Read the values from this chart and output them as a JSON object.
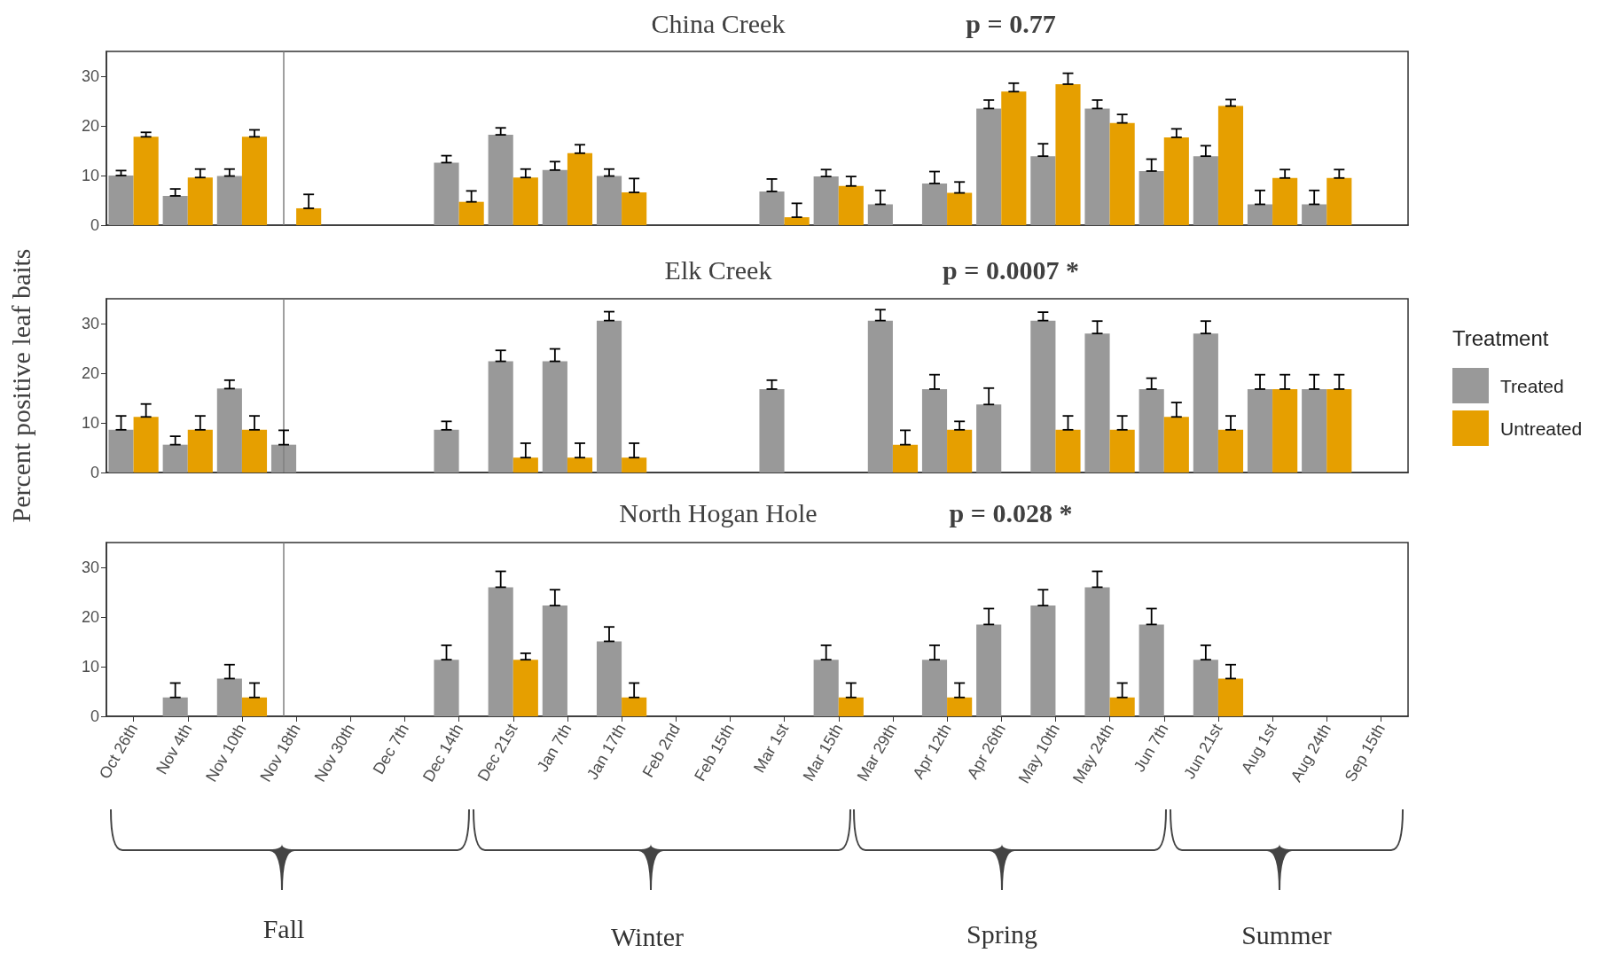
{
  "chart_data": [
    {
      "type": "bar",
      "title": "China Creek",
      "subtitle": "p = 0.77",
      "categories": [
        "Oct 26th",
        "Nov 4th",
        "Nov 10th",
        "Nov 18th",
        "Nov 30th",
        "Dec 7th",
        "Dec 14th",
        "Dec 21st",
        "Jan 7th",
        "Jan 17th",
        "Feb 2nd",
        "Feb 15th",
        "Mar 1st",
        "Mar 15th",
        "Mar 29th",
        "Apr 12th",
        "Apr 26th",
        "May 10th",
        "May 24th",
        "Jun 7th",
        "Jun 21st",
        "Aug 1st",
        "Aug 24th",
        "Sep 15th"
      ],
      "series": [
        {
          "color": "#999999",
          "values": [
            10.0,
            5.9,
            9.9,
            null,
            null,
            null,
            12.6,
            18.2,
            11.1,
            9.9,
            null,
            null,
            6.8,
            9.8,
            4.2,
            8.4,
            23.5,
            13.9,
            23.5,
            10.9,
            13.9,
            4.2,
            4.2,
            null
          ],
          "errors": [
            [
              10.0,
              11.0
            ],
            [
              5.9,
              7.3
            ],
            [
              9.9,
              11.3
            ],
            null,
            null,
            null,
            [
              12.6,
              14.0
            ],
            [
              18.2,
              19.6
            ],
            [
              11.1,
              12.8
            ],
            [
              9.9,
              11.3
            ],
            null,
            null,
            [
              6.8,
              9.3
            ],
            [
              9.8,
              11.2
            ],
            [
              4.2,
              7.0
            ],
            [
              8.4,
              10.8
            ],
            [
              23.5,
              25.2
            ],
            [
              13.9,
              16.4
            ],
            [
              23.5,
              25.2
            ],
            [
              10.9,
              13.3
            ],
            [
              13.9,
              16.0
            ],
            [
              4.2,
              7.0
            ],
            [
              4.2,
              7.0
            ],
            null
          ]
        },
        {
          "color": "#e69f00",
          "values": [
            17.8,
            9.6,
            17.8,
            3.4,
            null,
            null,
            4.7,
            9.6,
            14.5,
            6.6,
            null,
            null,
            1.6,
            7.9,
            null,
            6.5,
            26.9,
            28.4,
            20.6,
            17.7,
            24.0,
            9.5,
            9.5,
            null
          ],
          "errors": [
            [
              17.8,
              18.7
            ],
            [
              9.6,
              11.3
            ],
            [
              17.8,
              19.2
            ],
            [
              3.4,
              6.2
            ],
            null,
            null,
            [
              4.7,
              6.9
            ],
            [
              9.6,
              11.3
            ],
            [
              14.5,
              16.2
            ],
            [
              6.6,
              9.4
            ],
            null,
            null,
            [
              1.6,
              4.4
            ],
            [
              7.9,
              9.8
            ],
            null,
            [
              6.5,
              8.7
            ],
            [
              26.9,
              28.6
            ],
            [
              28.4,
              30.6
            ],
            [
              20.6,
              22.3
            ],
            [
              17.7,
              19.4
            ],
            [
              24.0,
              25.3
            ],
            [
              9.5,
              11.2
            ],
            [
              9.5,
              11.2
            ],
            null
          ]
        }
      ],
      "ylim": [
        0,
        35
      ],
      "yticks": [
        0,
        10,
        20,
        30
      ],
      "tick_labels": "y",
      "ref_lines": [
        {
          "axis": "x",
          "value": "Nov 18th",
          "color": "#808080"
        }
      ]
    },
    {
      "type": "bar",
      "title": "Elk Creek",
      "subtitle": "p = 0.0007 *",
      "ylabel": "Percent positive leaf baits",
      "legend_title": "Treatment",
      "categories": [
        "Oct 26th",
        "Nov 4th",
        "Nov 10th",
        "Nov 18th",
        "Nov 30th",
        "Dec 7th",
        "Dec 14th",
        "Dec 21st",
        "Jan 7th",
        "Jan 17th",
        "Feb 2nd",
        "Feb 15th",
        "Mar 1st",
        "Mar 15th",
        "Mar 29th",
        "Apr 12th",
        "Apr 26th",
        "May 10th",
        "May 24th",
        "Jun 7th",
        "Jun 21st",
        "Aug 1st",
        "Aug 24th",
        "Sep 15th"
      ],
      "series": [
        {
          "name": "Treated",
          "color": "#999999",
          "values": [
            8.6,
            5.6,
            16.9,
            5.6,
            null,
            null,
            8.6,
            22.4,
            22.4,
            30.6,
            null,
            null,
            16.8,
            null,
            30.6,
            16.8,
            13.7,
            30.6,
            28.0,
            16.8,
            28.0,
            16.8,
            16.8,
            null
          ],
          "errors": [
            [
              8.6,
              11.4
            ],
            [
              5.6,
              7.3
            ],
            [
              16.9,
              18.6
            ],
            [
              5.6,
              8.5
            ],
            null,
            null,
            [
              8.6,
              10.3
            ],
            [
              22.4,
              24.6
            ],
            [
              22.4,
              24.9
            ],
            [
              30.6,
              32.4
            ],
            null,
            null,
            [
              16.8,
              18.6
            ],
            null,
            [
              30.6,
              32.8
            ],
            [
              16.8,
              19.7
            ],
            [
              13.7,
              17.0
            ],
            [
              30.6,
              32.3
            ],
            [
              28.0,
              30.5
            ],
            [
              16.8,
              19.0
            ],
            [
              28.0,
              30.5
            ],
            [
              16.8,
              19.7
            ],
            [
              16.8,
              19.7
            ],
            null
          ]
        },
        {
          "name": "Untreated",
          "color": "#e69f00",
          "values": [
            11.2,
            8.6,
            8.6,
            null,
            null,
            null,
            null,
            3.0,
            3.0,
            3.0,
            null,
            null,
            null,
            null,
            5.6,
            8.6,
            null,
            8.6,
            8.6,
            11.2,
            8.6,
            16.8,
            16.8,
            null
          ],
          "errors": [
            [
              11.2,
              13.8
            ],
            [
              8.6,
              11.4
            ],
            [
              8.6,
              11.4
            ],
            null,
            null,
            null,
            null,
            [
              3.0,
              5.9
            ],
            [
              3.0,
              5.9
            ],
            [
              3.0,
              5.9
            ],
            null,
            null,
            null,
            null,
            [
              5.6,
              8.5
            ],
            [
              8.6,
              10.3
            ],
            null,
            [
              8.6,
              11.4
            ],
            [
              8.6,
              11.4
            ],
            [
              11.2,
              14.1
            ],
            [
              8.6,
              11.4
            ],
            [
              16.8,
              19.7
            ],
            [
              16.8,
              19.7
            ],
            null
          ]
        }
      ],
      "ylim": [
        0,
        35
      ],
      "yticks": [
        0,
        10,
        20,
        30
      ],
      "tick_labels": "y",
      "legend": "right",
      "ref_lines": [
        {
          "axis": "x",
          "value": "Nov 18th",
          "color": "#808080"
        }
      ]
    },
    {
      "type": "bar",
      "title": "North Hogan Hole",
      "subtitle": "p = 0.028 *",
      "categories": [
        "Oct 26th",
        "Nov 4th",
        "Nov 10th",
        "Nov 18th",
        "Nov 30th",
        "Dec 7th",
        "Dec 14th",
        "Dec 21st",
        "Jan 7th",
        "Jan 17th",
        "Feb 2nd",
        "Feb 15th",
        "Mar 1st",
        "Mar 15th",
        "Mar 29th",
        "Apr 12th",
        "Apr 26th",
        "May 10th",
        "May 24th",
        "Jun 7th",
        "Jun 21st",
        "Aug 1st",
        "Aug 24th",
        "Sep 15th"
      ],
      "series": [
        {
          "color": "#999999",
          "values": [
            null,
            3.8,
            7.6,
            null,
            null,
            null,
            11.4,
            26.0,
            22.3,
            15.1,
            null,
            null,
            null,
            11.4,
            null,
            11.4,
            18.5,
            22.3,
            26.0,
            18.5,
            11.4,
            null,
            null,
            null
          ],
          "errors": [
            null,
            [
              3.8,
              6.7
            ],
            [
              7.6,
              10.4
            ],
            null,
            null,
            null,
            [
              11.4,
              14.3
            ],
            [
              26.0,
              29.2
            ],
            [
              22.3,
              25.5
            ],
            [
              15.1,
              18.0
            ],
            null,
            null,
            null,
            [
              11.4,
              14.3
            ],
            null,
            [
              11.4,
              14.3
            ],
            [
              18.5,
              21.7
            ],
            [
              22.3,
              25.5
            ],
            [
              26.0,
              29.2
            ],
            [
              18.5,
              21.7
            ],
            [
              11.4,
              14.3
            ],
            null,
            null,
            null
          ]
        },
        {
          "color": "#e69f00",
          "values": [
            null,
            null,
            3.8,
            null,
            null,
            null,
            null,
            11.4,
            null,
            3.8,
            null,
            null,
            null,
            3.8,
            null,
            3.8,
            null,
            null,
            3.8,
            null,
            7.6,
            null,
            null,
            null
          ],
          "errors": [
            null,
            null,
            [
              3.8,
              6.7
            ],
            null,
            null,
            null,
            null,
            [
              11.4,
              12.7
            ],
            null,
            [
              3.8,
              6.7
            ],
            null,
            null,
            null,
            [
              3.8,
              6.7
            ],
            null,
            [
              3.8,
              6.7
            ],
            null,
            null,
            [
              3.8,
              6.7
            ],
            null,
            [
              7.6,
              10.4
            ],
            null,
            null,
            null
          ]
        }
      ],
      "ylim": [
        0,
        35
      ],
      "yticks": [
        0,
        10,
        20,
        30
      ],
      "ref_lines": [
        {
          "axis": "x",
          "value": "Nov 18th",
          "color": "#808080"
        }
      ],
      "annotations": [
        "Fall",
        "Winter",
        "Spring",
        "Summer"
      ]
    }
  ]
}
